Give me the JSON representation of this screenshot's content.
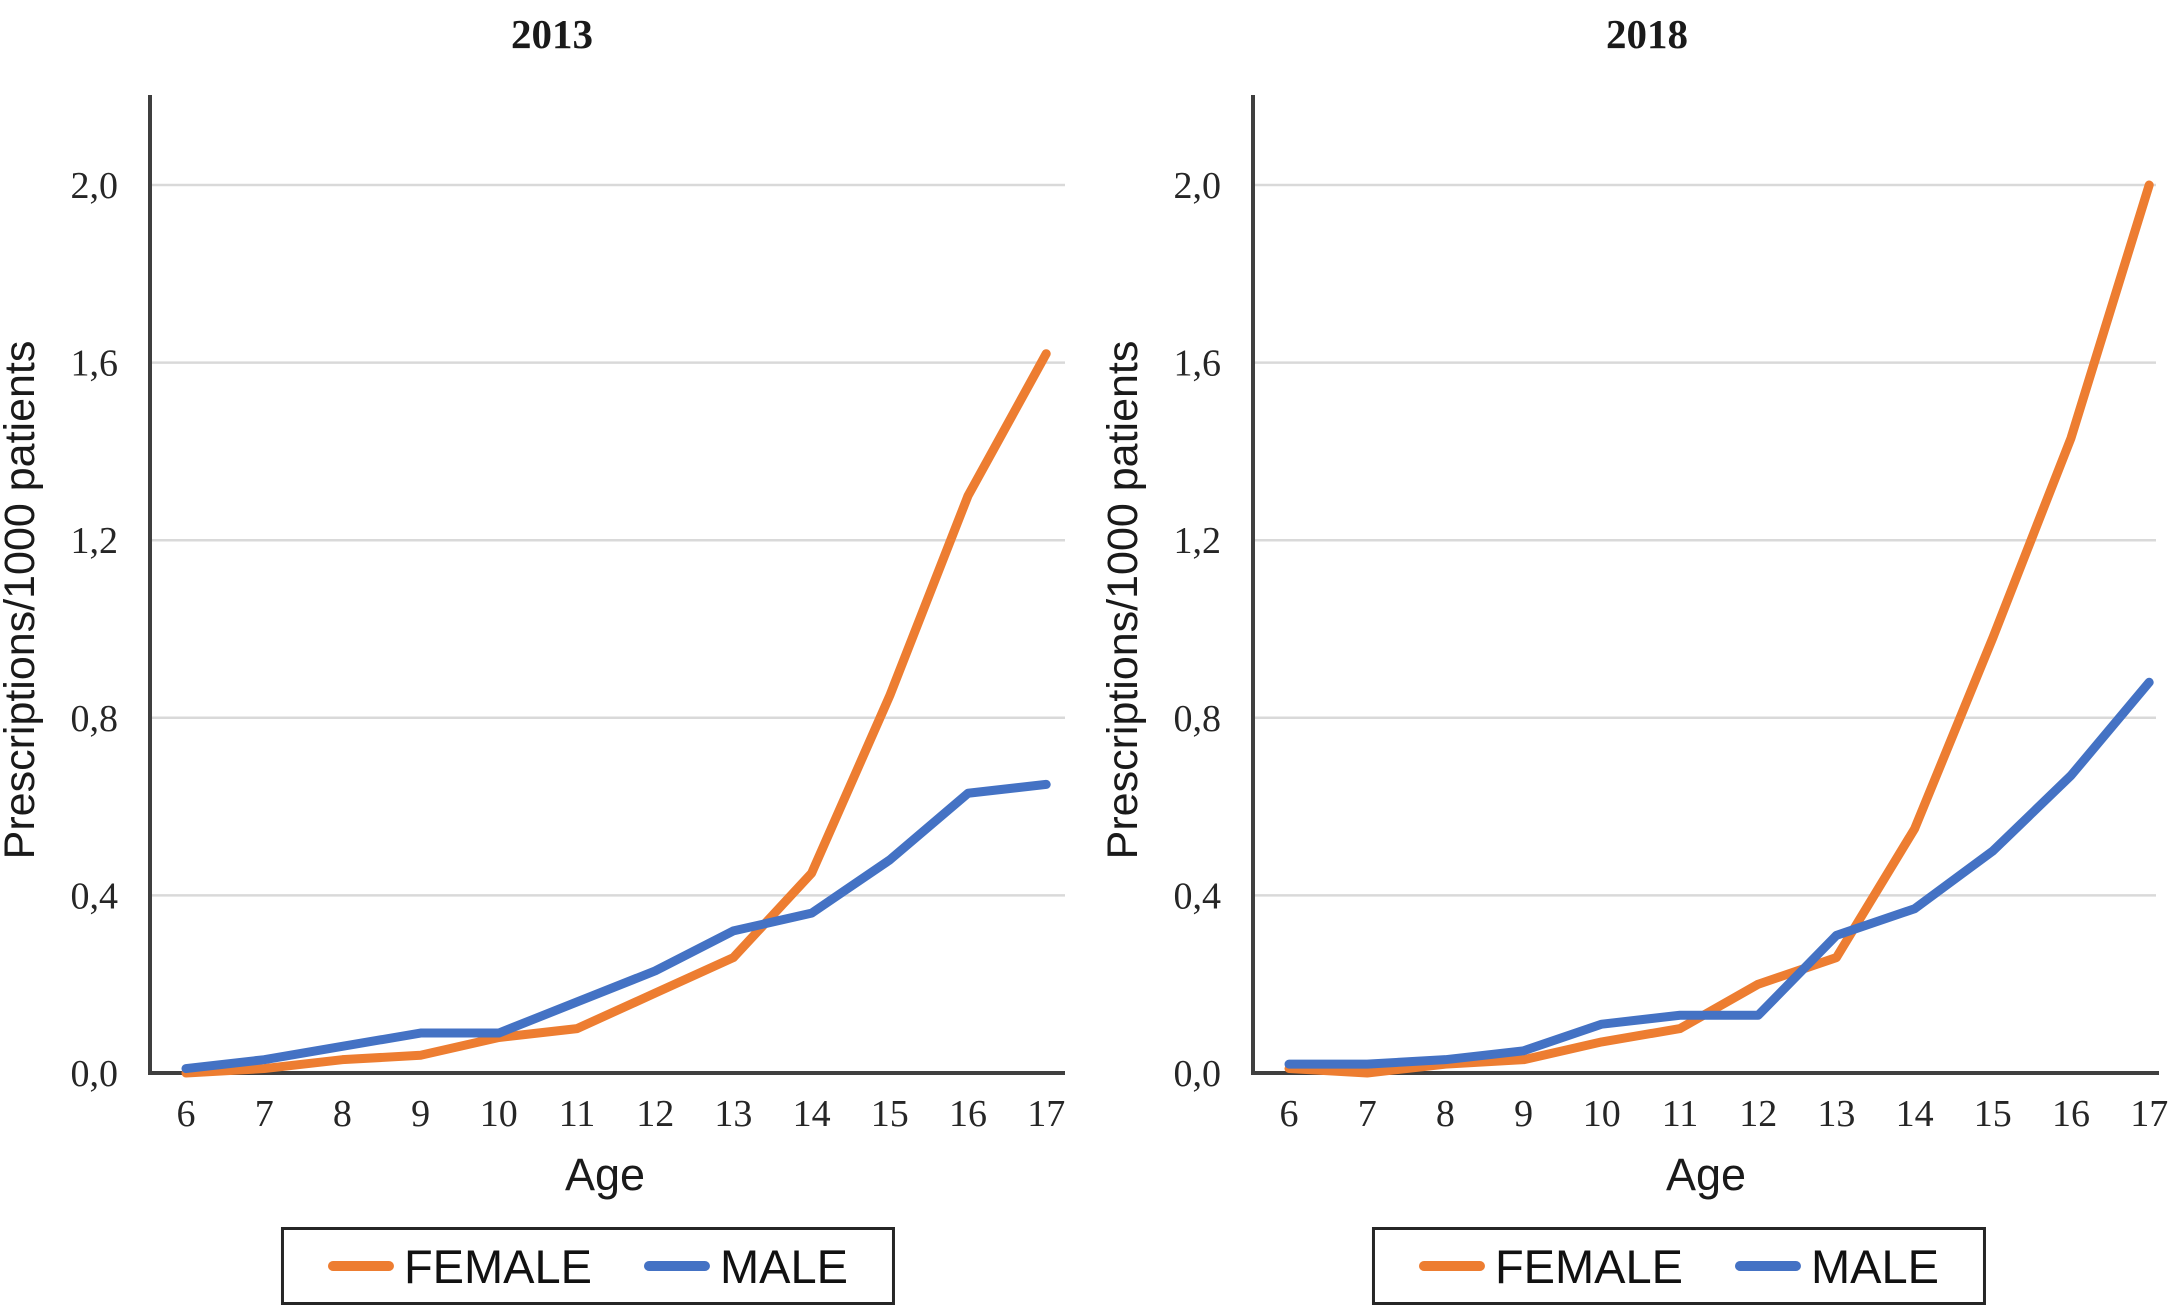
{
  "figure_background": "#ffffff",
  "colors": {
    "female": "#ED7D31",
    "male": "#4472C4",
    "gridline": "#D9D9D9",
    "axis": "#3f3f3f",
    "text": "#1a1a1a"
  },
  "chart_data": [
    {
      "type": "line",
      "title": "2013",
      "xlabel": "Age",
      "ylabel": "Prescriptions/1000 patients",
      "x": [
        6,
        7,
        8,
        9,
        10,
        11,
        12,
        13,
        14,
        15,
        16,
        17
      ],
      "series": [
        {
          "name": "FEMALE",
          "color_key": "female",
          "values": [
            0.0,
            0.01,
            0.03,
            0.04,
            0.08,
            0.1,
            0.18,
            0.26,
            0.45,
            0.85,
            1.3,
            1.62
          ]
        },
        {
          "name": "MALE",
          "color_key": "male",
          "values": [
            0.01,
            0.03,
            0.06,
            0.09,
            0.09,
            0.16,
            0.23,
            0.32,
            0.36,
            0.48,
            0.63,
            0.65
          ]
        }
      ],
      "ylim": [
        0.0,
        2.2
      ],
      "y_ticks": [
        0.0,
        0.4,
        0.8,
        1.2,
        1.6,
        2.0
      ],
      "y_tick_labels": [
        "0,0",
        "0,4",
        "0,8",
        "1,2",
        "1,6",
        "2,0"
      ],
      "grid": true,
      "legend_position": "bottom"
    },
    {
      "type": "line",
      "title": "2018",
      "xlabel": "Age",
      "ylabel": "Prescriptions/1000 patients",
      "x": [
        6,
        7,
        8,
        9,
        10,
        11,
        12,
        13,
        14,
        15,
        16,
        17
      ],
      "series": [
        {
          "name": "FEMALE",
          "color_key": "female",
          "values": [
            0.01,
            0.0,
            0.02,
            0.03,
            0.07,
            0.1,
            0.2,
            0.26,
            0.55,
            0.98,
            1.43,
            2.0
          ]
        },
        {
          "name": "MALE",
          "color_key": "male",
          "values": [
            0.02,
            0.02,
            0.03,
            0.05,
            0.11,
            0.13,
            0.13,
            0.31,
            0.37,
            0.5,
            0.67,
            0.88
          ]
        }
      ],
      "ylim": [
        0.0,
        2.2
      ],
      "y_ticks": [
        0.0,
        0.4,
        0.8,
        1.2,
        1.6,
        2.0
      ],
      "y_tick_labels": [
        "0,0",
        "0,4",
        "0,8",
        "1,2",
        "1,6",
        "2,0"
      ],
      "grid": true,
      "legend_position": "bottom"
    }
  ]
}
